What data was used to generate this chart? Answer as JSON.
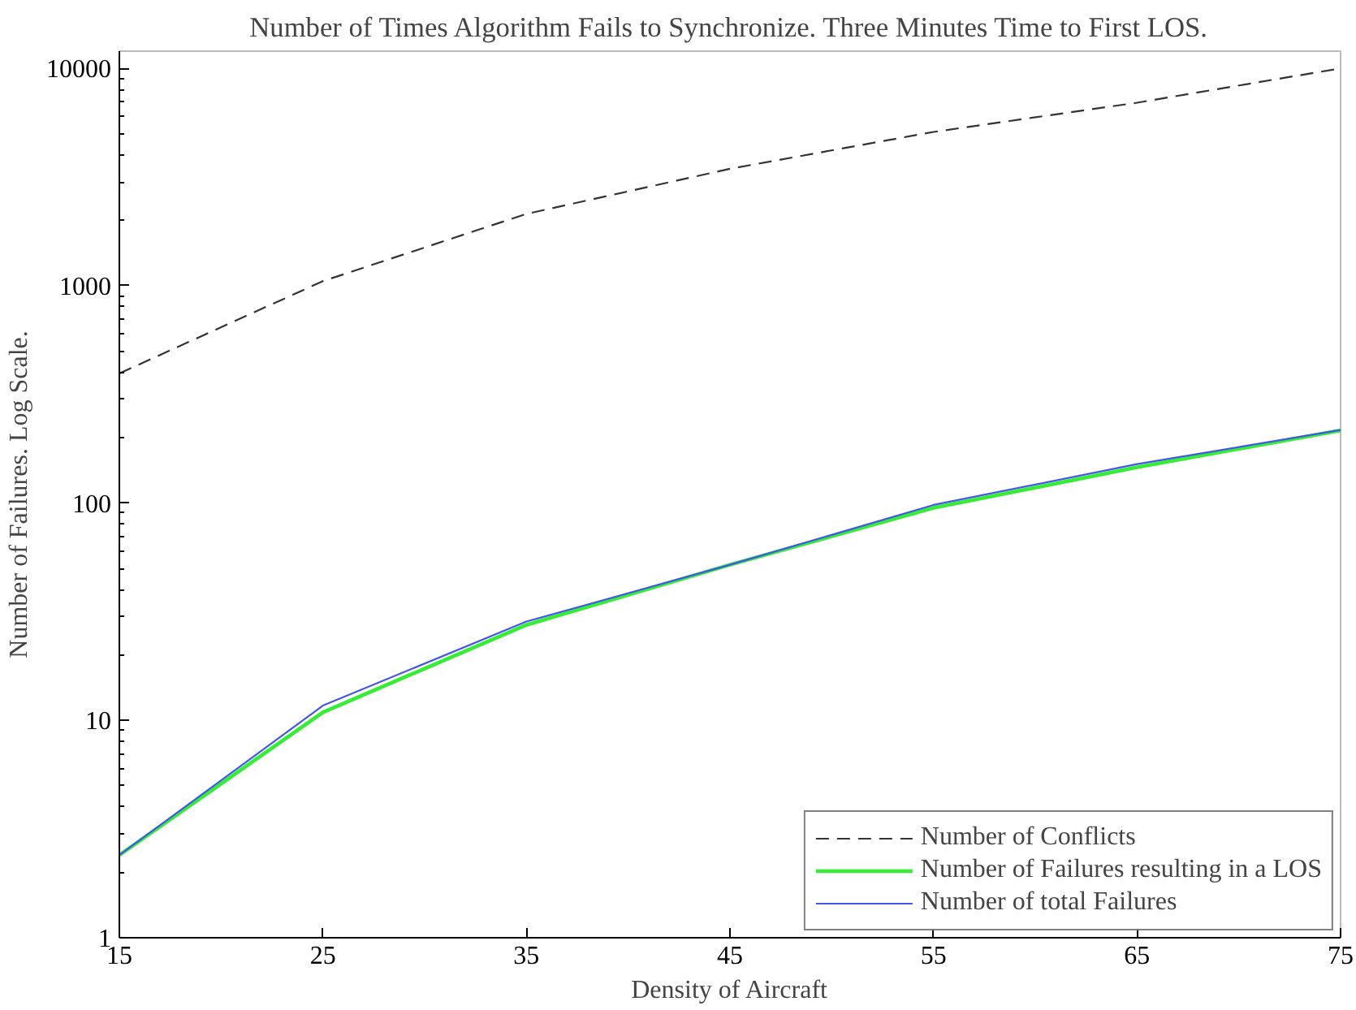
{
  "chart_data": {
    "type": "line",
    "title": "Number of Times Algorithm Fails to Synchronize. Three Minutes Time to First LOS.",
    "xlabel": "Density of Aircraft",
    "ylabel": "Number of Failures. Log Scale.",
    "x": [
      15,
      25,
      35,
      45,
      55,
      65,
      75
    ],
    "series": [
      {
        "name": "Number of Conflicts",
        "color": "#333333",
        "line_style": "dashed",
        "values": [
          395,
          1050,
          2140,
          3450,
          5100,
          6950,
          10000
        ]
      },
      {
        "name": "Number of Failures resulting in a LOS",
        "color": "#33ee33",
        "line_style": "solid",
        "values": [
          2.4,
          10.9,
          27.5,
          52,
          95,
          146,
          216
        ]
      },
      {
        "name": "Number of total Failures",
        "color": "#4455ee",
        "line_style": "solid",
        "values": [
          2.4,
          11.7,
          28.5,
          52,
          98,
          151,
          217
        ]
      }
    ],
    "log": "y",
    "xlim": [
      15,
      75
    ],
    "ylim": [
      1,
      12000
    ],
    "xticks": [
      15,
      25,
      35,
      45,
      55,
      65,
      75
    ],
    "yticks": [
      1,
      10,
      100,
      1000,
      10000
    ],
    "grid": false,
    "legend": "bottom right"
  }
}
